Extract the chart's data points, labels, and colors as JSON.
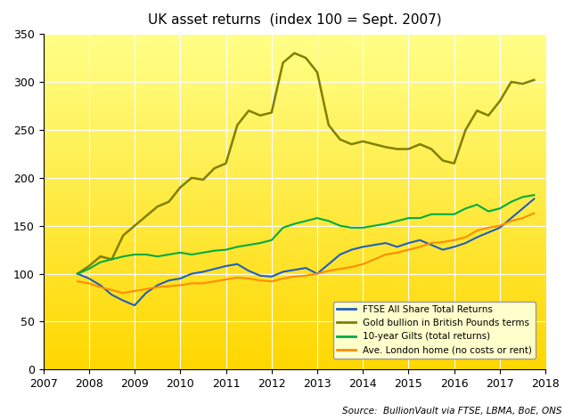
{
  "title": "UK asset returns  (index 100 = Sept. 2007)",
  "source": "Source:  BullionVault via FTSE, LBMA, BoE, ONS",
  "background_top": "#FFD700",
  "background_bottom": "#FFFF99",
  "xlim": [
    2007.0,
    2018.0
  ],
  "ylim": [
    0,
    350
  ],
  "yticks": [
    0,
    50,
    100,
    150,
    200,
    250,
    300,
    350
  ],
  "xticks": [
    2007,
    2008,
    2009,
    2010,
    2011,
    2012,
    2013,
    2014,
    2015,
    2016,
    2017,
    2018
  ],
  "series": {
    "ftse": {
      "label": "FTSE All Share Total Returns",
      "color": "#1F5FBF",
      "linewidth": 1.5,
      "data_x": [
        2007.75,
        2008.0,
        2008.25,
        2008.5,
        2008.75,
        2009.0,
        2009.25,
        2009.5,
        2009.75,
        2010.0,
        2010.25,
        2010.5,
        2010.75,
        2011.0,
        2011.25,
        2011.5,
        2011.75,
        2012.0,
        2012.25,
        2012.5,
        2012.75,
        2013.0,
        2013.25,
        2013.5,
        2013.75,
        2014.0,
        2014.25,
        2014.5,
        2014.75,
        2015.0,
        2015.25,
        2015.5,
        2015.75,
        2016.0,
        2016.25,
        2016.5,
        2016.75,
        2017.0,
        2017.25,
        2017.5,
        2017.75
      ],
      "data_y": [
        100,
        95,
        88,
        78,
        72,
        67,
        80,
        88,
        93,
        95,
        100,
        102,
        105,
        108,
        110,
        103,
        98,
        97,
        102,
        104,
        106,
        100,
        110,
        120,
        125,
        128,
        130,
        132,
        128,
        132,
        135,
        130,
        125,
        128,
        132,
        138,
        143,
        148,
        158,
        168,
        178
      ]
    },
    "gold": {
      "label": "Gold bullion in British Pounds terms",
      "color": "#808000",
      "linewidth": 1.8,
      "data_x": [
        2007.75,
        2008.0,
        2008.25,
        2008.5,
        2008.75,
        2009.0,
        2009.25,
        2009.5,
        2009.75,
        2010.0,
        2010.25,
        2010.5,
        2010.75,
        2011.0,
        2011.25,
        2011.5,
        2011.75,
        2012.0,
        2012.25,
        2012.5,
        2012.75,
        2013.0,
        2013.25,
        2013.5,
        2013.75,
        2014.0,
        2014.25,
        2014.5,
        2014.75,
        2015.0,
        2015.25,
        2015.5,
        2015.75,
        2016.0,
        2016.25,
        2016.5,
        2016.75,
        2017.0,
        2017.25,
        2017.5,
        2017.75
      ],
      "data_y": [
        100,
        108,
        118,
        115,
        140,
        150,
        160,
        170,
        175,
        190,
        200,
        198,
        210,
        215,
        255,
        270,
        265,
        268,
        320,
        330,
        325,
        310,
        255,
        240,
        235,
        238,
        235,
        232,
        230,
        230,
        235,
        230,
        218,
        215,
        250,
        270,
        265,
        280,
        300,
        298,
        302
      ]
    },
    "gilts": {
      "label": "10-year Gilts (total returns)",
      "color": "#00AA44",
      "linewidth": 1.5,
      "data_x": [
        2007.75,
        2008.0,
        2008.25,
        2008.5,
        2008.75,
        2009.0,
        2009.25,
        2009.5,
        2009.75,
        2010.0,
        2010.25,
        2010.5,
        2010.75,
        2011.0,
        2011.25,
        2011.5,
        2011.75,
        2012.0,
        2012.25,
        2012.5,
        2012.75,
        2013.0,
        2013.25,
        2013.5,
        2013.75,
        2014.0,
        2014.25,
        2014.5,
        2014.75,
        2015.0,
        2015.25,
        2015.5,
        2015.75,
        2016.0,
        2016.25,
        2016.5,
        2016.75,
        2017.0,
        2017.25,
        2017.5,
        2017.75
      ],
      "data_y": [
        100,
        105,
        112,
        115,
        118,
        120,
        120,
        118,
        120,
        122,
        120,
        122,
        124,
        125,
        128,
        130,
        132,
        135,
        148,
        152,
        155,
        158,
        155,
        150,
        148,
        148,
        150,
        152,
        155,
        158,
        158,
        162,
        162,
        162,
        168,
        172,
        165,
        168,
        175,
        180,
        182
      ]
    },
    "housing": {
      "label": "Ave. London home (no costs or rent)",
      "color": "#FF8C00",
      "linewidth": 1.5,
      "data_x": [
        2007.75,
        2008.0,
        2008.25,
        2008.5,
        2008.75,
        2009.0,
        2009.25,
        2009.5,
        2009.75,
        2010.0,
        2010.25,
        2010.5,
        2010.75,
        2011.0,
        2011.25,
        2011.5,
        2011.75,
        2012.0,
        2012.25,
        2012.5,
        2012.75,
        2013.0,
        2013.25,
        2013.5,
        2013.75,
        2014.0,
        2014.25,
        2014.5,
        2014.75,
        2015.0,
        2015.25,
        2015.5,
        2015.75,
        2016.0,
        2016.25,
        2016.5,
        2016.75,
        2017.0,
        2017.25,
        2017.5,
        2017.75
      ],
      "data_y": [
        92,
        90,
        86,
        83,
        80,
        82,
        84,
        86,
        87,
        88,
        90,
        90,
        92,
        94,
        96,
        95,
        93,
        92,
        95,
        97,
        98,
        100,
        103,
        105,
        107,
        110,
        115,
        120,
        122,
        125,
        128,
        132,
        133,
        135,
        138,
        145,
        148,
        150,
        155,
        158,
        163
      ]
    }
  }
}
